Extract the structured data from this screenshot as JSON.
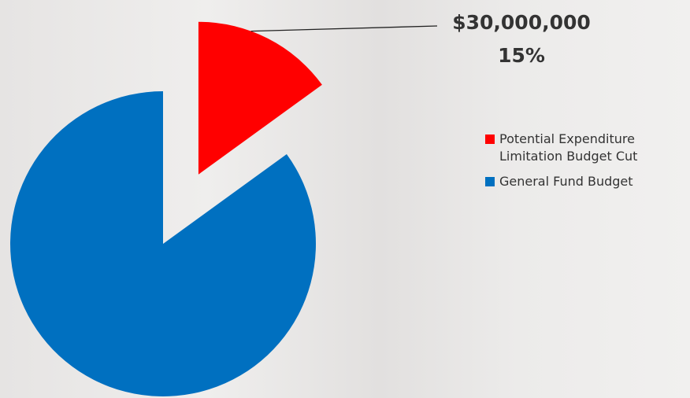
{
  "chart_data": {
    "type": "pie",
    "categories": [
      "Potential Expenditure Limitation Budget Cut",
      "General Fund Budget"
    ],
    "values": [
      15,
      85
    ],
    "value_labels": [
      "15%",
      null
    ],
    "annotations": [
      {
        "text": "$30,000,000"
      }
    ],
    "colors": [
      "#ff0000",
      "#0070c0"
    ],
    "legend": "right"
  }
}
